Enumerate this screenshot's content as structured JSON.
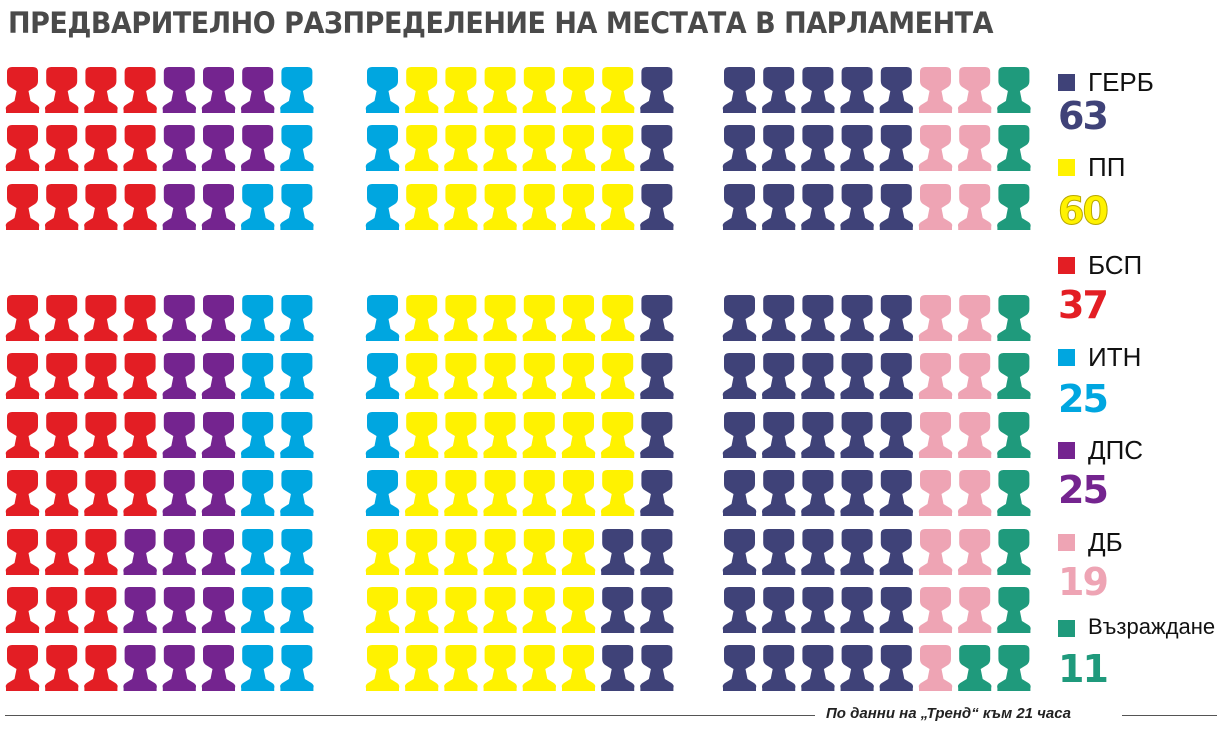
{
  "title": "ПРЕДВАРИТЕЛНО РАЗПРЕДЕЛЕНИЕ НА МЕСТАТА В ПАРЛАМЕНТА",
  "source": "По данни на „Тренд“ към 21 часа",
  "chart_data": {
    "type": "seat-allocation",
    "title": "ПРЕДВАРИТЕЛНО РАЗПРЕДЕЛЕНИЕ НА МЕСТАТА В ПАРЛАМЕНТА",
    "total_seats": 240,
    "legend_position": "right",
    "series": [
      {
        "name": "ГЕРБ",
        "value": 63,
        "color": "#3f4278"
      },
      {
        "name": "ПП",
        "value": 60,
        "color": "#fff200"
      },
      {
        "name": "БСП",
        "value": 37,
        "color": "#e31e24"
      },
      {
        "name": "ИТН",
        "value": 25,
        "color": "#00a6e0"
      },
      {
        "name": "ДПС",
        "value": 25,
        "color": "#74248f"
      },
      {
        "name": "ДБ",
        "value": 19,
        "color": "#eea4b4"
      },
      {
        "name": "Възраждане",
        "value": 11,
        "color": "#1f9a7c"
      }
    ],
    "blocks": [
      {
        "rows": [
          [
            "БСП",
            "БСП",
            "БСП",
            "БСП",
            "ДПС",
            "ДПС",
            "ДПС",
            "ИТН"
          ],
          [
            "БСП",
            "БСП",
            "БСП",
            "БСП",
            "ДПС",
            "ДПС",
            "ДПС",
            "ИТН"
          ],
          [
            "БСП",
            "БСП",
            "БСП",
            "БСП",
            "ДПС",
            "ДПС",
            "ИТН",
            "ИТН"
          ],
          [
            "БСП",
            "БСП",
            "БСП",
            "БСП",
            "ДПС",
            "ДПС",
            "ИТН",
            "ИТН"
          ],
          [
            "БСП",
            "БСП",
            "БСП",
            "БСП",
            "ДПС",
            "ДПС",
            "ИТН",
            "ИТН"
          ],
          [
            "БСП",
            "БСП",
            "БСП",
            "БСП",
            "ДПС",
            "ДПС",
            "ИТН",
            "ИТН"
          ],
          [
            "БСП",
            "БСП",
            "БСП",
            "БСП",
            "ДПС",
            "ДПС",
            "ИТН",
            "ИТН"
          ],
          [
            "БСП",
            "БСП",
            "БСП",
            "ДПС",
            "ДПС",
            "ДПС",
            "ИТН",
            "ИТН"
          ],
          [
            "БСП",
            "БСП",
            "БСП",
            "ДПС",
            "ДПС",
            "ДПС",
            "ИТН",
            "ИТН"
          ],
          [
            "БСП",
            "БСП",
            "БСП",
            "ДПС",
            "ДПС",
            "ДПС",
            "ИТН",
            "ИТН"
          ]
        ]
      },
      {
        "rows": [
          [
            "ИТН",
            "ПП",
            "ПП",
            "ПП",
            "ПП",
            "ПП",
            "ПП",
            "ГЕРБ"
          ],
          [
            "ИТН",
            "ПП",
            "ПП",
            "ПП",
            "ПП",
            "ПП",
            "ПП",
            "ГЕРБ"
          ],
          [
            "ИТН",
            "ПП",
            "ПП",
            "ПП",
            "ПП",
            "ПП",
            "ПП",
            "ГЕРБ"
          ],
          [
            "ИТН",
            "ПП",
            "ПП",
            "ПП",
            "ПП",
            "ПП",
            "ПП",
            "ГЕРБ"
          ],
          [
            "ИТН",
            "ПП",
            "ПП",
            "ПП",
            "ПП",
            "ПП",
            "ПП",
            "ГЕРБ"
          ],
          [
            "ИТН",
            "ПП",
            "ПП",
            "ПП",
            "ПП",
            "ПП",
            "ПП",
            "ГЕРБ"
          ],
          [
            "ИТН",
            "ПП",
            "ПП",
            "ПП",
            "ПП",
            "ПП",
            "ПП",
            "ГЕРБ"
          ],
          [
            "ПП",
            "ПП",
            "ПП",
            "ПП",
            "ПП",
            "ПП",
            "ГЕРБ",
            "ГЕРБ"
          ],
          [
            "ПП",
            "ПП",
            "ПП",
            "ПП",
            "ПП",
            "ПП",
            "ГЕРБ",
            "ГЕРБ"
          ],
          [
            "ПП",
            "ПП",
            "ПП",
            "ПП",
            "ПП",
            "ПП",
            "ГЕРБ",
            "ГЕРБ"
          ]
        ]
      },
      {
        "rows": [
          [
            "ГЕРБ",
            "ГЕРБ",
            "ГЕРБ",
            "ГЕРБ",
            "ГЕРБ",
            "ДБ",
            "ДБ",
            "Възраждане"
          ],
          [
            "ГЕРБ",
            "ГЕРБ",
            "ГЕРБ",
            "ГЕРБ",
            "ГЕРБ",
            "ДБ",
            "ДБ",
            "Възраждане"
          ],
          [
            "ГЕРБ",
            "ГЕРБ",
            "ГЕРБ",
            "ГЕРБ",
            "ГЕРБ",
            "ДБ",
            "ДБ",
            "Възраждане"
          ],
          [
            "ГЕРБ",
            "ГЕРБ",
            "ГЕРБ",
            "ГЕРБ",
            "ГЕРБ",
            "ДБ",
            "ДБ",
            "Възраждане"
          ],
          [
            "ГЕРБ",
            "ГЕРБ",
            "ГЕРБ",
            "ГЕРБ",
            "ГЕРБ",
            "ДБ",
            "ДБ",
            "Възраждане"
          ],
          [
            "ГЕРБ",
            "ГЕРБ",
            "ГЕРБ",
            "ГЕРБ",
            "ГЕРБ",
            "ДБ",
            "ДБ",
            "Възраждане"
          ],
          [
            "ГЕРБ",
            "ГЕРБ",
            "ГЕРБ",
            "ГЕРБ",
            "ГЕРБ",
            "ДБ",
            "ДБ",
            "Възраждане"
          ],
          [
            "ГЕРБ",
            "ГЕРБ",
            "ГЕРБ",
            "ГЕРБ",
            "ГЕРБ",
            "ДБ",
            "ДБ",
            "Възраждане"
          ],
          [
            "ГЕРБ",
            "ГЕРБ",
            "ГЕРБ",
            "ГЕРБ",
            "ГЕРБ",
            "ДБ",
            "ДБ",
            "Възраждане"
          ],
          [
            "ГЕРБ",
            "ГЕРБ",
            "ГЕРБ",
            "ГЕРБ",
            "ГЕРБ",
            "ДБ",
            "Възраждане",
            "Възраждане"
          ]
        ]
      }
    ]
  }
}
